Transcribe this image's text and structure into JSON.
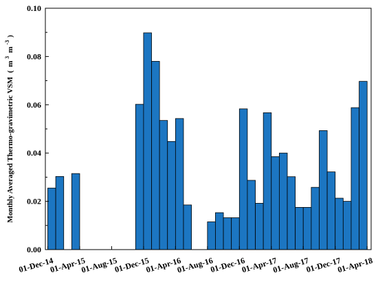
{
  "chart_data": {
    "type": "bar",
    "ylabel_main": "Monthly Averaged Thermo-gravimetric VSM",
    "ylabel_unit_open": "(",
    "ylabel_unit_m1": "m",
    "ylabel_unit_exp1": "3",
    "ylabel_unit_m2": "m",
    "ylabel_unit_exp2": "-3",
    "ylabel_unit_close": ")",
    "xlabel": "",
    "ylim": [
      0,
      0.1
    ],
    "ytick_values": [
      0.0,
      0.02,
      0.04,
      0.06,
      0.08,
      0.1
    ],
    "ytick_labels": [
      "0.00",
      "0.02",
      "0.04",
      "0.06",
      "0.08",
      "0.10"
    ],
    "xtick_labels": [
      "01-Dec-14",
      "01-Apr-15",
      "01-Aug-15",
      "01-Dec-15",
      "01-Apr-16",
      "01-Aug-16",
      "01-Dec-16",
      "01-Apr-17",
      "01-Aug-17",
      "01-Dec-17",
      "01-Apr-18"
    ],
    "xtick_month_index": [
      0,
      4,
      8,
      12,
      16,
      20,
      24,
      28,
      32,
      36,
      40
    ],
    "month_span": [
      -0.3,
      40.5
    ],
    "bar_color": "#1c76c2",
    "bar_edge_color": "#000000",
    "grid": false,
    "months": [
      "Dec-14",
      "Jan-15",
      "Feb-15",
      "Mar-15",
      "Apr-15",
      "May-15",
      "Jun-15",
      "Jul-15",
      "Aug-15",
      "Sep-15",
      "Oct-15",
      "Nov-15",
      "Dec-15",
      "Jan-16",
      "Feb-16",
      "Mar-16",
      "Apr-16",
      "May-16",
      "Jun-16",
      "Jul-16",
      "Aug-16",
      "Sep-16",
      "Oct-16",
      "Nov-16",
      "Dec-16",
      "Jan-17",
      "Feb-17",
      "Mar-17",
      "Apr-17",
      "May-17",
      "Jun-17",
      "Jul-17",
      "Aug-17",
      "Sep-17",
      "Oct-17",
      "Nov-17",
      "Dec-17",
      "Jan-18",
      "Feb-18",
      "Mar-18",
      "Apr-18"
    ],
    "values": [
      0.0255,
      0.0303,
      null,
      0.0315,
      null,
      null,
      null,
      null,
      null,
      null,
      null,
      0.0602,
      0.0898,
      0.078,
      0.0535,
      0.0448,
      0.0543,
      0.0185,
      null,
      null,
      0.0115,
      0.0153,
      0.0132,
      0.0132,
      0.0583,
      0.0287,
      0.0192,
      0.0567,
      0.0385,
      0.04,
      0.0302,
      0.0175,
      0.0175,
      0.0258,
      0.0493,
      0.0322,
      0.0213,
      0.02,
      0.0588,
      0.0697,
      null
    ]
  }
}
